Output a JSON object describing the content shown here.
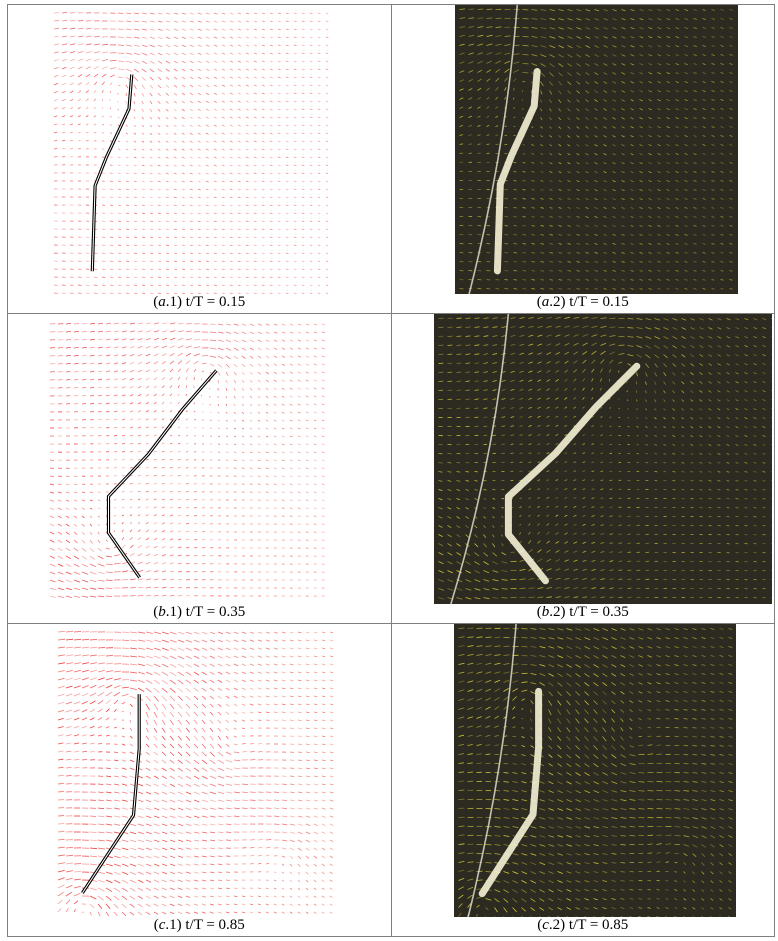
{
  "figure": {
    "panels": [
      {
        "id": "a1",
        "label": "a",
        "index": "1",
        "caption": "t/T = 0.15",
        "kind": "piv",
        "frame": "a"
      },
      {
        "id": "a2",
        "label": "a",
        "index": "2",
        "caption": "t/T = 0.15",
        "kind": "photo",
        "frame": "a"
      },
      {
        "id": "b1",
        "label": "b",
        "index": "1",
        "caption": "t/T = 0.35",
        "kind": "piv",
        "frame": "b"
      },
      {
        "id": "b2",
        "label": "b",
        "index": "2",
        "caption": "t/T = 0.35",
        "kind": "photo",
        "frame": "b"
      },
      {
        "id": "c1",
        "label": "c",
        "index": "1",
        "caption": "t/T = 0.85",
        "kind": "piv",
        "frame": "c"
      },
      {
        "id": "c2",
        "label": "c",
        "index": "2",
        "caption": "t/T = 0.85",
        "kind": "photo",
        "frame": "c"
      }
    ],
    "colors": {
      "piv_vectors": "#e8282a",
      "flap_outline": "#000000",
      "photo_background": "#2d2b21",
      "photo_vectors": "#e3dc3a",
      "flap_highlight": "#f6f2d6",
      "border": "#7f7f7f"
    }
  }
}
